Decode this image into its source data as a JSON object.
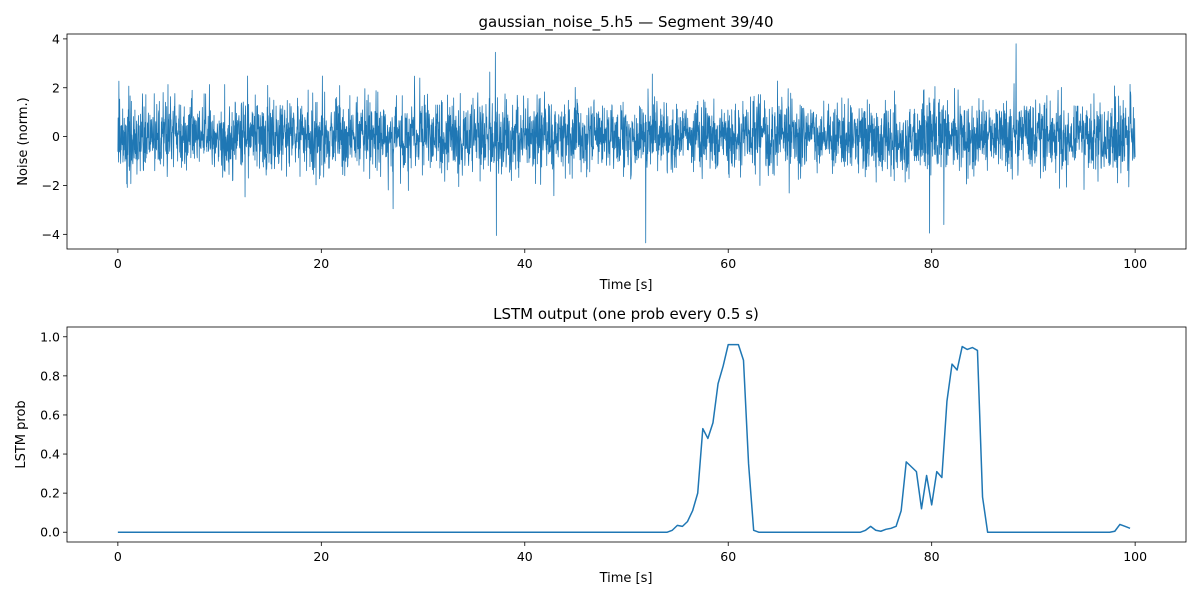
{
  "colors": {
    "series": "#1f77b4",
    "axes": "#000000",
    "background": "#ffffff"
  },
  "chart_data": [
    {
      "type": "line",
      "title": "gaussian_noise_5.h5 — Segment 39/40",
      "xlabel": "Time [s]",
      "ylabel": "Noise (norm.)",
      "xlim": [
        -5,
        105
      ],
      "ylim": [
        -4.6,
        4.2
      ],
      "xticks": [
        0,
        20,
        40,
        60,
        80,
        100
      ],
      "yticks": [
        -4,
        -2,
        0,
        2,
        4
      ],
      "grid": false,
      "legend": "none",
      "series": [
        {
          "x_range": [
            0,
            100
          ],
          "values_note": "dense gaussian noise, std ~0.75, peaks roughly between -4.3 and 3.8",
          "std": 0.75,
          "samples": 4000,
          "extremes": [
            {
              "x": 37.2,
              "y": -4.05
            },
            {
              "x": 51.9,
              "y": -4.35
            },
            {
              "x": 88.3,
              "y": 3.8
            },
            {
              "x": 37.1,
              "y": 3.45
            },
            {
              "x": 79.8,
              "y": -3.95
            },
            {
              "x": 81.2,
              "y": -3.6
            }
          ]
        }
      ]
    },
    {
      "type": "line",
      "title": "LSTM output (one prob every 0.5 s)",
      "xlabel": "Time [s]",
      "ylabel": "LSTM prob",
      "xlim": [
        -5,
        105
      ],
      "ylim": [
        -0.05,
        1.05
      ],
      "xticks": [
        0,
        20,
        40,
        60,
        80,
        100
      ],
      "yticks": [
        0.0,
        0.2,
        0.4,
        0.6,
        0.8,
        1.0
      ],
      "grid": false,
      "legend": "none",
      "series": [
        {
          "x": [
            0,
            54,
            54.5,
            55,
            55.5,
            56,
            56.5,
            57,
            57.5,
            58,
            58.5,
            59,
            59.5,
            60,
            60.5,
            61,
            61.5,
            62,
            62.5,
            63,
            73,
            73.5,
            74,
            74.5,
            75,
            75.5,
            76,
            76.5,
            77,
            77.5,
            78,
            78.5,
            79,
            79.5,
            80,
            80.5,
            81,
            81.5,
            82,
            82.5,
            83,
            83.5,
            84,
            84.5,
            85,
            85.5,
            86,
            97.5,
            98,
            98.5,
            99,
            99.5
          ],
          "y": [
            0.0,
            0.0,
            0.01,
            0.035,
            0.03,
            0.055,
            0.11,
            0.2,
            0.53,
            0.48,
            0.56,
            0.76,
            0.85,
            0.96,
            0.96,
            0.96,
            0.88,
            0.35,
            0.01,
            0.0,
            0.0,
            0.01,
            0.03,
            0.01,
            0.005,
            0.015,
            0.02,
            0.03,
            0.11,
            0.36,
            0.335,
            0.31,
            0.12,
            0.29,
            0.14,
            0.31,
            0.28,
            0.67,
            0.86,
            0.83,
            0.95,
            0.935,
            0.945,
            0.93,
            0.18,
            0.0,
            0.0,
            0.0,
            0.005,
            0.04,
            0.03,
            0.02
          ]
        }
      ]
    }
  ]
}
